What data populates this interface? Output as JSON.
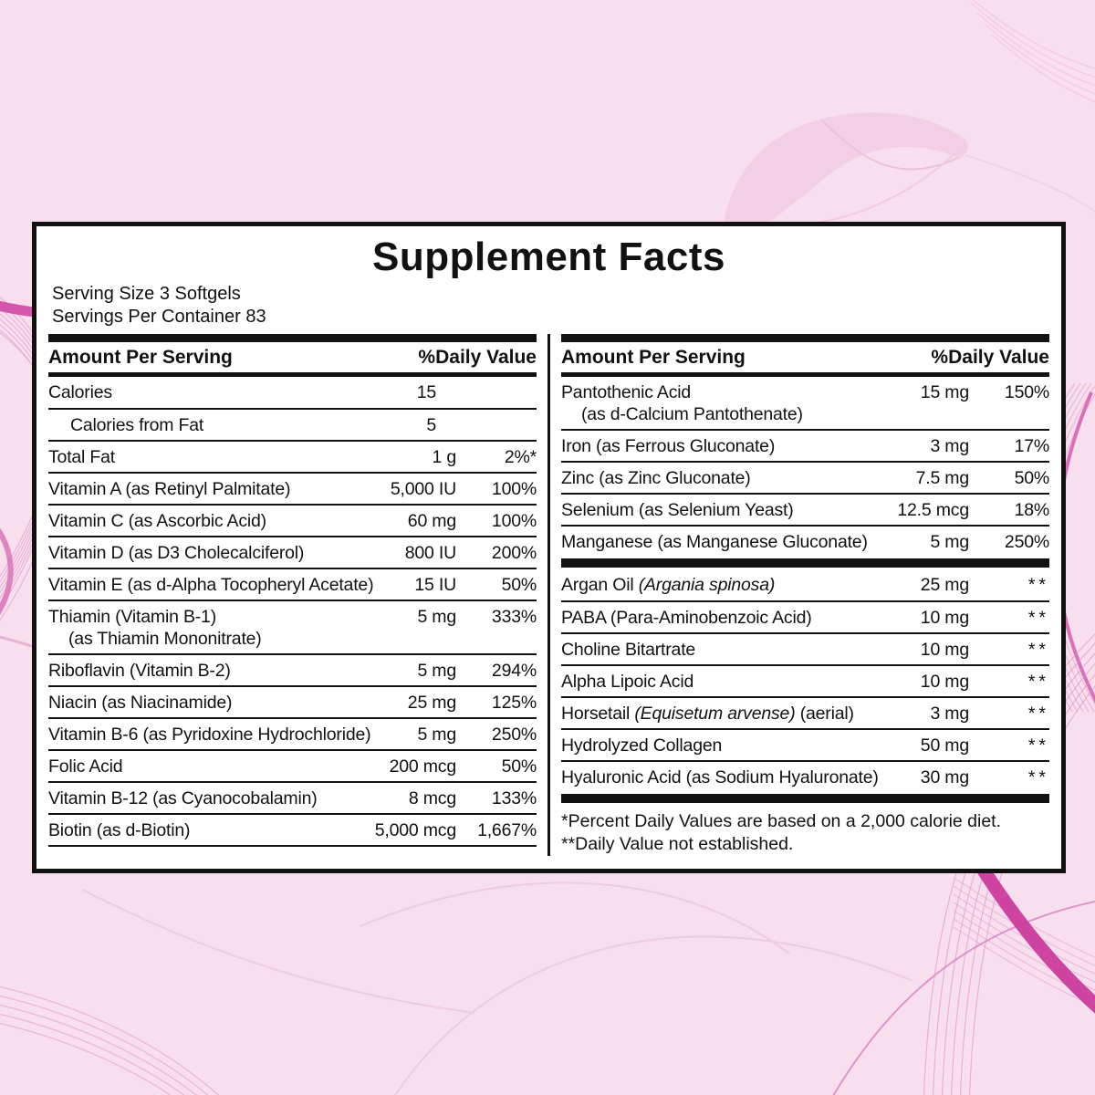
{
  "title": "Supplement Facts",
  "serving": {
    "size": "Serving Size 3 Softgels",
    "per_container": "Servings Per Container 83"
  },
  "header": {
    "amount": "Amount Per Serving",
    "dv": "%Daily Value"
  },
  "table": {
    "left_rows": [
      {
        "name": [
          {
            "text": "Calories"
          }
        ],
        "amount": "15",
        "dv": "",
        "pad_amount": true
      },
      {
        "name": [
          {
            "text": "Calories from Fat"
          }
        ],
        "amount": "5",
        "dv": "",
        "indent": true,
        "pad_amount": true
      },
      {
        "name": [
          {
            "text": "Total Fat"
          }
        ],
        "amount": "1 g",
        "dv": "2%*"
      },
      {
        "name": [
          {
            "text": "Vitamin A (as Retinyl Palmitate)"
          }
        ],
        "amount": "5,000 IU",
        "dv": "100%"
      },
      {
        "name": [
          {
            "text": "Vitamin C (as Ascorbic Acid)"
          }
        ],
        "amount": "60 mg",
        "dv": "100%"
      },
      {
        "name": [
          {
            "text": "Vitamin D (as D3 Cholecalciferol)"
          }
        ],
        "amount": "800 IU",
        "dv": "200%"
      },
      {
        "name": [
          {
            "text": "Vitamin E (as d-Alpha Tocopheryl Acetate)"
          }
        ],
        "amount": "15 IU",
        "dv": "50%"
      },
      {
        "name": [
          {
            "text": "Thiamin (Vitamin B-1)"
          }
        ],
        "name2": "(as Thiamin Mononitrate)",
        "amount": "5 mg",
        "dv": "333%"
      },
      {
        "name": [
          {
            "text": "Riboflavin (Vitamin B-2)"
          }
        ],
        "amount": "5 mg",
        "dv": "294%"
      },
      {
        "name": [
          {
            "text": "Niacin (as Niacinamide)"
          }
        ],
        "amount": "25 mg",
        "dv": "125%"
      },
      {
        "name": [
          {
            "text": "Vitamin B-6 (as Pyridoxine Hydrochloride)"
          }
        ],
        "amount": "5 mg",
        "dv": "250%"
      },
      {
        "name": [
          {
            "text": "Folic Acid"
          }
        ],
        "amount": "200 mcg",
        "dv": "50%"
      },
      {
        "name": [
          {
            "text": "Vitamin B-12 (as Cyanocobalamin)"
          }
        ],
        "amount": "8 mcg",
        "dv": "133%"
      },
      {
        "name": [
          {
            "text": "Biotin (as d-Biotin)"
          }
        ],
        "amount": "5,000 mcg",
        "dv": "1,667%"
      }
    ],
    "right_rows_top": [
      {
        "name": [
          {
            "text": "Pantothenic Acid"
          }
        ],
        "name2": "(as d-Calcium Pantothenate)",
        "amount": "15 mg",
        "dv": "150%"
      },
      {
        "name": [
          {
            "text": "Iron (as Ferrous Gluconate)"
          }
        ],
        "amount": "3 mg",
        "dv": "17%"
      },
      {
        "name": [
          {
            "text": "Zinc (as Zinc Gluconate)"
          }
        ],
        "amount": "7.5 mg",
        "dv": "50%"
      },
      {
        "name": [
          {
            "text": "Selenium (as Selenium Yeast)"
          }
        ],
        "amount": "12.5 mcg",
        "dv": "18%"
      },
      {
        "name": [
          {
            "text": "Manganese (as Manganese Gluconate)"
          }
        ],
        "amount": "5 mg",
        "dv": "250%"
      }
    ],
    "right_rows_bottom": [
      {
        "name": [
          {
            "text": "Argan Oil "
          },
          {
            "text": "(Argania spinosa)",
            "italic": true
          }
        ],
        "amount": "25 mg",
        "dv": "**"
      },
      {
        "name": [
          {
            "text": "PABA (Para-Aminobenzoic Acid)"
          }
        ],
        "amount": "10 mg",
        "dv": "**"
      },
      {
        "name": [
          {
            "text": "Choline Bitartrate"
          }
        ],
        "amount": "10 mg",
        "dv": "**"
      },
      {
        "name": [
          {
            "text": "Alpha Lipoic Acid"
          }
        ],
        "amount": "10 mg",
        "dv": "**"
      },
      {
        "name": [
          {
            "text": "Horsetail "
          },
          {
            "text": "(Equisetum arvense)",
            "italic": true
          },
          {
            "text": " (aerial)"
          }
        ],
        "amount": "3 mg",
        "dv": "**"
      },
      {
        "name": [
          {
            "text": "Hydrolyzed Collagen"
          }
        ],
        "amount": "50 mg",
        "dv": "**"
      },
      {
        "name": [
          {
            "text": "Hyaluronic Acid (as Sodium Hyaluronate)"
          }
        ],
        "amount": "30 mg",
        "dv": "**"
      }
    ]
  },
  "footnotes": [
    "*Percent Daily Values are based on a 2,000 calorie diet.",
    "**Daily Value not established."
  ],
  "colors": {
    "background_pink": "#f8dfee",
    "swirl_magenta": "#cb3c9c",
    "swirl_mid_pink": "#d76fb8",
    "swirl_light_pink": "#e3a1cf",
    "panel_background": "#ffffff",
    "text": "#111111"
  }
}
